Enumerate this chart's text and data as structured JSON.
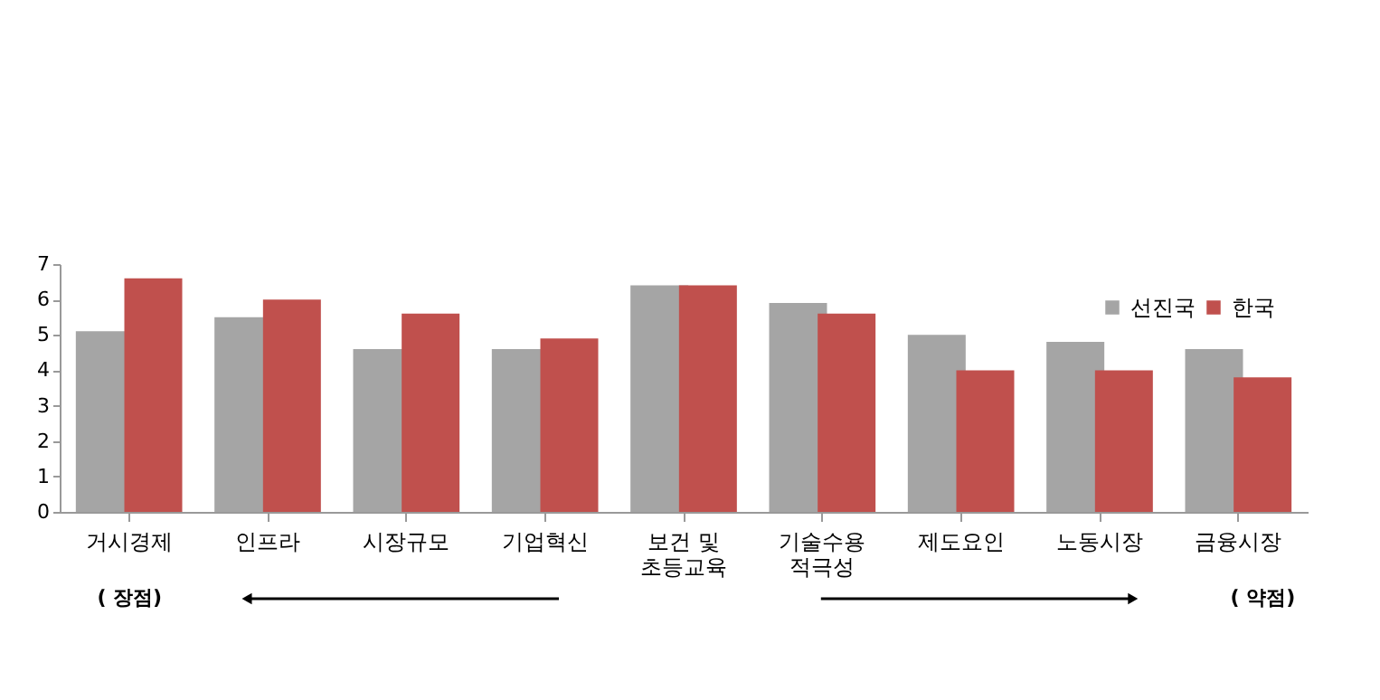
{
  "chart_data": {
    "type": "bar",
    "categories": [
      "거시경제",
      "인프라",
      "시장규모",
      "기업혁신",
      "보건 및\n초등교육",
      "기술수용\n적극성",
      "제도요인",
      "노동시장",
      "금융시장"
    ],
    "series": [
      {
        "name": "선진국",
        "color": "#a5a5a5",
        "values": [
          5.1,
          5.5,
          4.6,
          4.6,
          6.4,
          5.9,
          5.0,
          4.8,
          4.6
        ]
      },
      {
        "name": "한국",
        "color": "#c0504d",
        "values": [
          6.6,
          6.0,
          5.6,
          4.9,
          6.4,
          5.6,
          4.0,
          4.0,
          3.8
        ]
      }
    ],
    "ylim": [
      0,
      7
    ],
    "yticks": [
      0,
      1,
      2,
      3,
      4,
      5,
      6,
      7
    ],
    "grid": false,
    "legend": "top right",
    "annotations": [
      "( 장점)",
      "( 약점)"
    ]
  }
}
